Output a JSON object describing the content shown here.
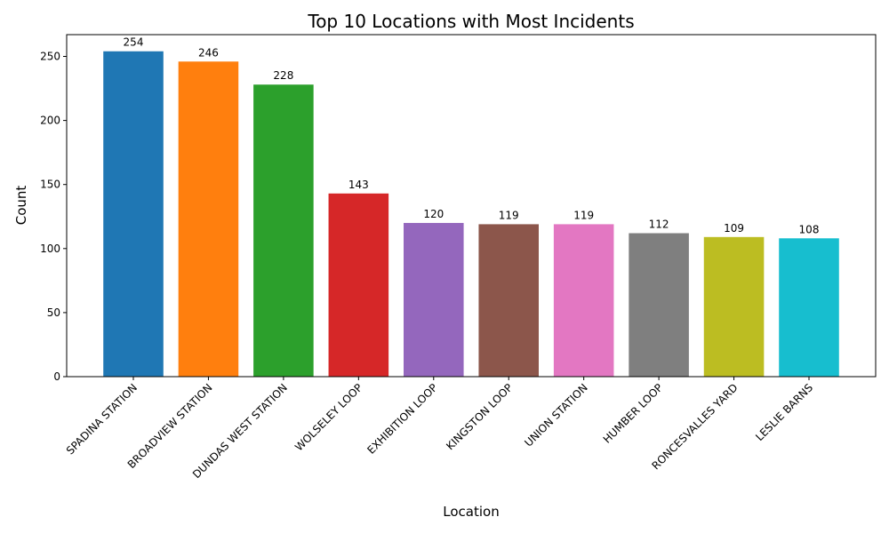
{
  "chart_data": {
    "type": "bar",
    "title": "Top 10 Locations with Most Incidents",
    "xlabel": "Location",
    "ylabel": "Count",
    "categories": [
      "SPADINA STATION",
      "BROADVIEW STATION",
      "DUNDAS WEST STATION",
      "WOLSELEY LOOP",
      "EXHIBITION LOOP",
      "KINGSTON LOOP",
      "UNION STATION",
      "HUMBER LOOP",
      "RONCESVALLES YARD",
      "LESLIE BARNS"
    ],
    "values": [
      254,
      246,
      228,
      143,
      120,
      119,
      119,
      112,
      109,
      108
    ],
    "colors": [
      "#1f77b4",
      "#ff7f0e",
      "#2ca02c",
      "#d62728",
      "#9467bd",
      "#8c564b",
      "#e377c2",
      "#7f7f7f",
      "#bcbd22",
      "#17becf"
    ],
    "ylim": [
      0,
      267
    ],
    "yticks": [
      0,
      50,
      100,
      150,
      200,
      250
    ],
    "grid": false,
    "legend": "none"
  }
}
